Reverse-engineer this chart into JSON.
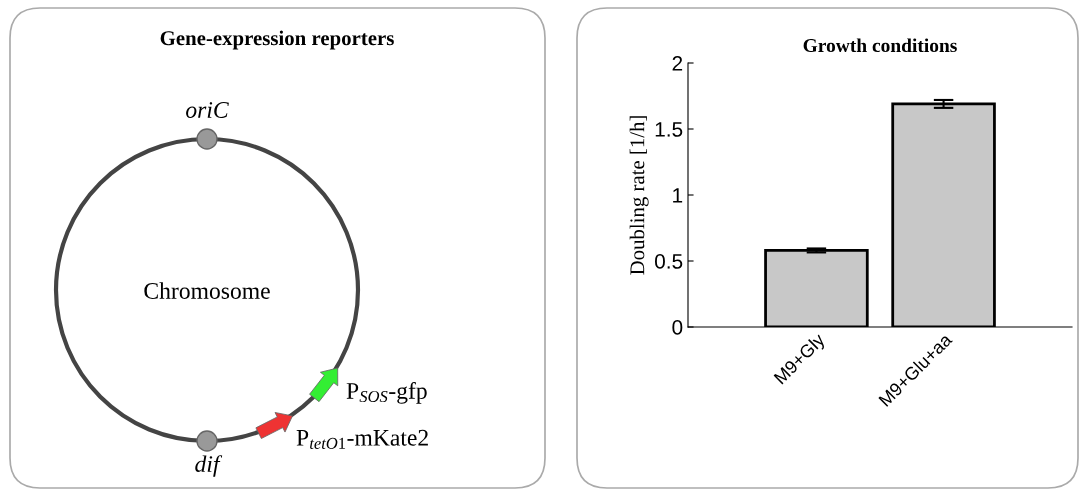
{
  "chart_data": [
    {
      "type": "other",
      "title": "Gene-expression reporters",
      "annotations": [
        "oriC",
        "Chromosome",
        "P$_{SOS}$-gfp",
        "P$_{tetO1}$-mKate2",
        "dif"
      ]
    },
    {
      "type": "bar",
      "title": "Growth conditions",
      "ylabel": "Doubling rate [1/h]",
      "categories": [
        "M9+Gly",
        "M9+Glu+aa"
      ],
      "values": [
        0.58,
        1.69
      ],
      "errors": [
        0.015,
        0.03
      ],
      "color": "#c8c8c8",
      "ylim": [
        0,
        2
      ],
      "yticks": [
        0,
        0.5,
        1,
        1.5,
        2
      ],
      "grid": false
    }
  ]
}
